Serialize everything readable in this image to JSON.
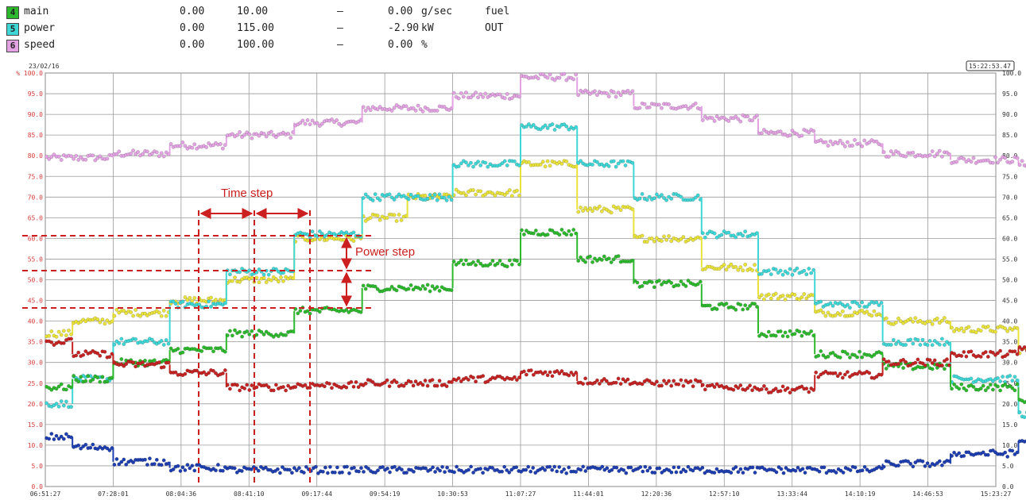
{
  "legend": [
    {
      "idx": "4",
      "name": "main",
      "min": "0.00",
      "max": "10.00",
      "dash": "–",
      "value": "0.00",
      "unit": "g/sec",
      "note": "fuel",
      "color": "#2db82d"
    },
    {
      "idx": "5",
      "name": "power",
      "min": "0.00",
      "max": "115.00",
      "dash": "–",
      "value": "-2.90",
      "unit": "kW",
      "note": "OUT",
      "color": "#3fd6d6"
    },
    {
      "idx": "6",
      "name": "speed",
      "min": "0.00",
      "max": "100.00",
      "dash": "–",
      "value": "0.00",
      "unit": "%",
      "note": "",
      "color": "#e3a3e3"
    }
  ],
  "header": {
    "date": "23/02/16",
    "clock": "15:22:53.47"
  },
  "chart_data": {
    "type": "scatter",
    "xlabel": "",
    "ylabel": "",
    "x_ticks": [
      "06:51:27",
      "07:28:01",
      "08:04:36",
      "08:41:10",
      "09:17:44",
      "09:54:19",
      "10:30:53",
      "11:07:27",
      "11:44:01",
      "12:20:36",
      "12:57:10",
      "13:33:44",
      "14:10:19",
      "14:46:53",
      "15:23:27"
    ],
    "y_ticks_left": [
      "% 100.0",
      "95.0",
      "90.0",
      "85.0",
      "80.0",
      "75.0",
      "70.0",
      "65.0",
      "60.0",
      "55.0",
      "50.0",
      "45.0",
      "40.0",
      "35.0",
      "30.0",
      "25.0",
      "20.0",
      "15.0",
      "10.0",
      "5.0",
      "0.0"
    ],
    "y_ticks_right": [
      "100.0",
      "95.0",
      "90.0",
      "85.0",
      "80.0",
      "75.0",
      "70.0",
      "65.0",
      "60.0",
      "55.0",
      "50.0",
      "45.0",
      "40.0",
      "35.0",
      "30.0",
      "25.0",
      "20.0",
      "15.0",
      "10.0",
      "5.0",
      "0.0"
    ],
    "ylim": [
      0,
      100
    ],
    "grid": true,
    "series": [
      {
        "color": "#e3a3e3",
        "levels": [
          [
            0,
            1.2,
            79.5
          ],
          [
            1.2,
            3,
            79.5
          ],
          [
            3,
            5.5,
            80.5
          ],
          [
            5.5,
            8,
            82.5
          ],
          [
            8,
            11,
            85
          ],
          [
            11,
            14,
            88
          ],
          [
            14,
            18,
            91.5
          ],
          [
            18,
            21,
            94.5
          ],
          [
            21,
            23.5,
            99
          ],
          [
            23.5,
            26,
            95
          ],
          [
            26,
            29,
            92
          ],
          [
            29,
            31.5,
            89
          ],
          [
            31.5,
            34,
            85.5
          ],
          [
            34,
            37,
            83
          ],
          [
            37,
            40,
            80.5
          ],
          [
            40,
            43,
            79
          ],
          [
            43,
            46,
            78
          ],
          [
            46,
            46.8,
            72
          ],
          [
            46.8,
            47.5,
            0
          ]
        ]
      },
      {
        "color": "#e8e23a",
        "levels": [
          [
            0,
            1.2,
            37
          ],
          [
            1.2,
            3,
            40
          ],
          [
            3,
            5.5,
            42
          ],
          [
            5.5,
            8,
            45
          ],
          [
            8,
            11,
            50
          ],
          [
            11,
            12.5,
            60
          ],
          [
            12.5,
            14,
            60
          ],
          [
            14,
            16,
            65
          ],
          [
            16,
            18,
            70
          ],
          [
            18,
            21,
            71
          ],
          [
            21,
            23.5,
            78
          ],
          [
            23.5,
            26,
            67
          ],
          [
            26,
            29,
            60
          ],
          [
            29,
            31.5,
            53
          ],
          [
            31.5,
            34,
            46
          ],
          [
            34,
            37,
            42
          ],
          [
            37,
            40,
            40
          ],
          [
            40,
            43,
            38
          ],
          [
            43,
            46,
            33
          ]
        ]
      },
      {
        "color": "#3fd6d6",
        "levels": [
          [
            0,
            1.2,
            20
          ],
          [
            1.2,
            3,
            26
          ],
          [
            3,
            5.5,
            35
          ],
          [
            5.5,
            8,
            44
          ],
          [
            8,
            11,
            52
          ],
          [
            11,
            12.5,
            61
          ],
          [
            12.5,
            14,
            61
          ],
          [
            14,
            18,
            70
          ],
          [
            18,
            21,
            78
          ],
          [
            21,
            23.5,
            87
          ],
          [
            23.5,
            26,
            78
          ],
          [
            26,
            29,
            70
          ],
          [
            29,
            31.5,
            61
          ],
          [
            31.5,
            34,
            52
          ],
          [
            34,
            37,
            44
          ],
          [
            37,
            40,
            35
          ],
          [
            40,
            43,
            26
          ],
          [
            43,
            46,
            17.5
          ],
          [
            46,
            47.5,
            0
          ]
        ]
      },
      {
        "color": "#2db82d",
        "levels": [
          [
            0,
            1.2,
            24
          ],
          [
            1.2,
            3,
            26
          ],
          [
            3,
            5.5,
            30
          ],
          [
            5.5,
            8,
            33
          ],
          [
            8,
            11,
            37
          ],
          [
            11,
            12.5,
            42.5
          ],
          [
            12.5,
            14,
            42.5
          ],
          [
            14,
            18,
            48
          ],
          [
            18,
            21,
            54
          ],
          [
            21,
            23.5,
            61.5
          ],
          [
            23.5,
            26,
            55
          ],
          [
            26,
            29,
            49
          ],
          [
            29,
            31.5,
            43.5
          ],
          [
            31.5,
            34,
            37
          ],
          [
            34,
            37,
            32
          ],
          [
            37,
            40,
            29
          ],
          [
            40,
            43,
            24
          ],
          [
            43,
            46,
            21
          ],
          [
            46,
            47.5,
            0
          ]
        ]
      },
      {
        "color": "#c42424",
        "levels": [
          [
            0,
            1.2,
            35
          ],
          [
            1.2,
            3,
            32
          ],
          [
            3,
            5.5,
            29.5
          ],
          [
            5.5,
            8,
            27.5
          ],
          [
            8,
            11,
            24
          ],
          [
            11,
            14,
            24.5
          ],
          [
            14,
            18,
            25
          ],
          [
            18,
            21,
            26
          ],
          [
            21,
            23.5,
            27.5
          ],
          [
            23.5,
            26,
            25.5
          ],
          [
            26,
            29,
            25
          ],
          [
            29,
            31.5,
            24
          ],
          [
            31.5,
            34,
            23.5
          ],
          [
            34,
            37,
            27
          ],
          [
            37,
            40,
            30
          ],
          [
            40,
            43,
            32
          ],
          [
            43,
            46,
            33.5
          ]
        ]
      },
      {
        "color": "#1f3fb0",
        "levels": [
          [
            0,
            1.2,
            12
          ],
          [
            1.2,
            3,
            9.5
          ],
          [
            3,
            5.5,
            6
          ],
          [
            5.5,
            8,
            4.5
          ],
          [
            8,
            37,
            4
          ],
          [
            37,
            40,
            5.5
          ],
          [
            40,
            43,
            8
          ],
          [
            43,
            46,
            11
          ],
          [
            46,
            47.5,
            0
          ]
        ]
      }
    ]
  },
  "annotations": {
    "time_step": "Time step",
    "power_step": "Power step",
    "color": "#cc1f1f"
  }
}
